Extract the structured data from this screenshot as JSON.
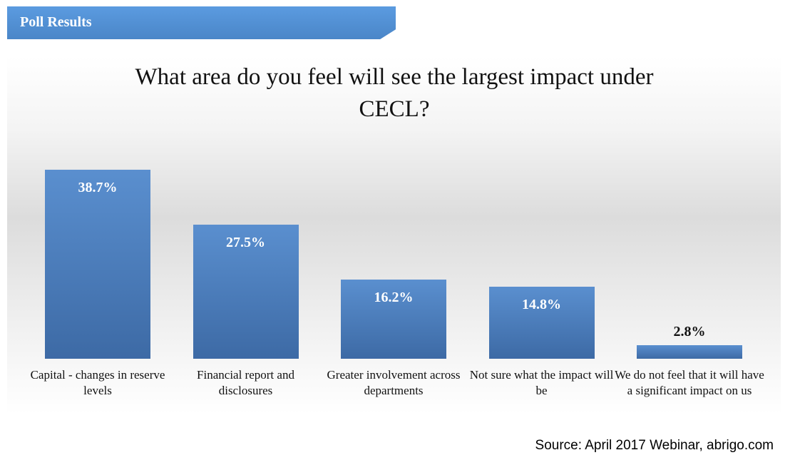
{
  "header": {
    "title": "Poll Results"
  },
  "chart_data": {
    "type": "bar",
    "title": "What area do you feel will see the largest impact under CECL?",
    "categories": [
      "Capital - changes in reserve levels",
      "Financial report and disclosures",
      "Greater involvement across departments",
      "Not sure what the impact will be",
      "We do not feel that it will have a significant impact on us"
    ],
    "values": [
      38.7,
      27.5,
      16.2,
      14.8,
      2.8
    ],
    "value_labels": [
      "38.7%",
      "27.5%",
      "16.2%",
      "14.8%",
      "2.8%"
    ],
    "color": "#4a7dbb"
  },
  "source": "Source: April 2017 Webinar, abrigo.com"
}
